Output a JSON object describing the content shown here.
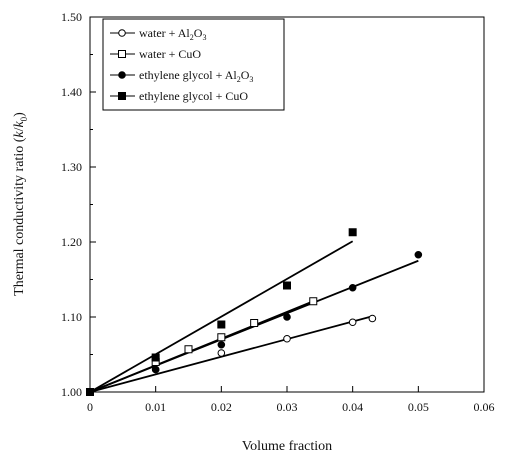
{
  "chart_data": {
    "type": "scatter",
    "xlabel": "Volume fraction",
    "ylabel_parts": [
      "Thermal conductivity ratio (",
      "k",
      "/",
      "k",
      "0",
      ")"
    ],
    "xlim": [
      0,
      0.06
    ],
    "ylim": [
      1.0,
      1.5
    ],
    "x_ticks": [
      "0",
      "0.01",
      "0.02",
      "0.03",
      "0.04",
      "0.05",
      "0.06"
    ],
    "y_ticks": [
      "1.00",
      "1.10",
      "1.20",
      "1.30",
      "1.40",
      "1.50"
    ],
    "legend_position": "top-left",
    "grid": false,
    "series": [
      {
        "legend_parts": [
          "water + Al",
          "2",
          "O",
          "3",
          ""
        ],
        "marker": "open-circle",
        "points": [
          [
            0,
            1.0
          ],
          [
            0.01,
            1.03
          ],
          [
            0.02,
            1.052
          ],
          [
            0.03,
            1.071
          ],
          [
            0.04,
            1.093
          ],
          [
            0.043,
            1.098
          ]
        ],
        "fit": [
          [
            0,
            1.0
          ],
          [
            0.043,
            1.101
          ]
        ]
      },
      {
        "legend_parts": [
          "water + CuO"
        ],
        "marker": "open-square",
        "points": [
          [
            0,
            1.0
          ],
          [
            0.01,
            1.04
          ],
          [
            0.015,
            1.057
          ],
          [
            0.02,
            1.073
          ],
          [
            0.025,
            1.092
          ],
          [
            0.034,
            1.121
          ]
        ],
        "fit": [
          [
            0,
            1.0
          ],
          [
            0.034,
            1.121
          ]
        ]
      },
      {
        "legend_parts": [
          "ethylene glycol + Al",
          "2",
          "O",
          "3",
          ""
        ],
        "marker": "filled-circle",
        "points": [
          [
            0,
            1.0
          ],
          [
            0.01,
            1.03
          ],
          [
            0.02,
            1.063
          ],
          [
            0.03,
            1.1
          ],
          [
            0.04,
            1.139
          ],
          [
            0.05,
            1.183
          ]
        ],
        "fit": [
          [
            0,
            1.0
          ],
          [
            0.05,
            1.175
          ]
        ]
      },
      {
        "legend_parts": [
          "ethylene glycol + CuO"
        ],
        "marker": "filled-square",
        "points": [
          [
            0,
            1.0
          ],
          [
            0.01,
            1.046
          ],
          [
            0.02,
            1.09
          ],
          [
            0.03,
            1.142
          ],
          [
            0.04,
            1.213
          ]
        ],
        "fit": [
          [
            0,
            1.0
          ],
          [
            0.04,
            1.201
          ]
        ]
      }
    ]
  }
}
